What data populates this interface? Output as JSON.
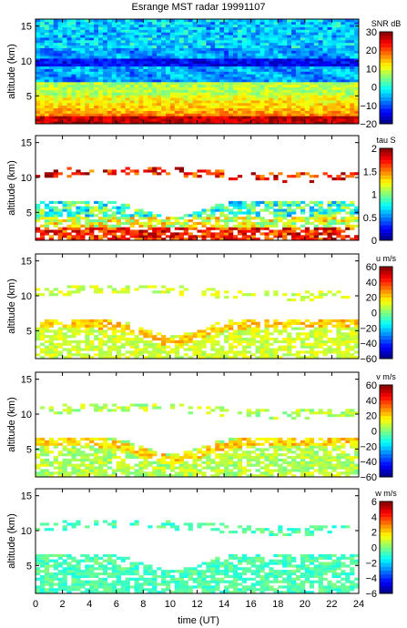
{
  "title": "Esrange MST radar 19991107",
  "xlabel": "time (UT)",
  "chart_data": {
    "type": "heatmap",
    "title": "Esrange MST radar 19991107",
    "xlabel": "time (UT)",
    "xlim": [
      0,
      24
    ],
    "xticks": [
      0,
      2,
      4,
      6,
      8,
      10,
      12,
      14,
      16,
      18,
      20,
      22,
      24
    ],
    "xtick_labels": [
      "0",
      "2",
      "4",
      "6",
      "8",
      "10",
      "12",
      "14",
      "16",
      "18",
      "20",
      "22",
      "24"
    ],
    "panels": [
      {
        "ylabel": "altitude (km)",
        "ylim": [
          1,
          16
        ],
        "yticks": [
          5,
          10,
          15
        ],
        "ytick_labels": [
          "5",
          "10",
          "15"
        ],
        "colorbar_label": "SNR dB",
        "clim": [
          -20,
          30
        ],
        "cticks": [
          -20,
          -10,
          0,
          10,
          20,
          30
        ],
        "ctick_labels": [
          "−20",
          "−10",
          "0",
          "10",
          "20",
          "30"
        ]
      },
      {
        "ylabel": "altitude (km)",
        "ylim": [
          1,
          16
        ],
        "yticks": [
          5,
          10,
          15
        ],
        "ytick_labels": [
          "5",
          "10",
          "15"
        ],
        "colorbar_label": "tau S",
        "clim": [
          0,
          2
        ],
        "cticks": [
          0,
          0.5,
          1,
          1.5,
          2
        ],
        "ctick_labels": [
          "0",
          "0.5",
          "1",
          "1.5",
          "2"
        ]
      },
      {
        "ylabel": "altitude (km)",
        "ylim": [
          1,
          16
        ],
        "yticks": [
          5,
          10,
          15
        ],
        "ytick_labels": [
          "5",
          "10",
          "15"
        ],
        "colorbar_label": "u m/s",
        "clim": [
          -60,
          60
        ],
        "cticks": [
          -60,
          -40,
          -20,
          0,
          20,
          40,
          60
        ],
        "ctick_labels": [
          "−60",
          "−40",
          "−20",
          "0",
          "20",
          "40",
          "60"
        ]
      },
      {
        "ylabel": "altitude (km)",
        "ylim": [
          1,
          16
        ],
        "yticks": [
          5,
          10,
          15
        ],
        "ytick_labels": [
          "5",
          "10",
          "15"
        ],
        "colorbar_label": "v m/s",
        "clim": [
          -60,
          60
        ],
        "cticks": [
          -60,
          -40,
          -20,
          0,
          20,
          40,
          60
        ],
        "ctick_labels": [
          "−60",
          "−40",
          "−20",
          "0",
          "20",
          "40",
          "60"
        ]
      },
      {
        "ylabel": "altitude (km)",
        "ylim": [
          1,
          16
        ],
        "yticks": [
          5,
          10,
          15
        ],
        "ytick_labels": [
          "5",
          "10",
          "15"
        ],
        "colorbar_label": "w m/s",
        "clim": [
          -6,
          6
        ],
        "cticks": [
          -6,
          -4,
          -2,
          0,
          2,
          4,
          6
        ],
        "ctick_labels": [
          "−6",
          "−4",
          "−2",
          "0",
          "2",
          "4",
          "6"
        ]
      }
    ],
    "colormap": "jet"
  }
}
